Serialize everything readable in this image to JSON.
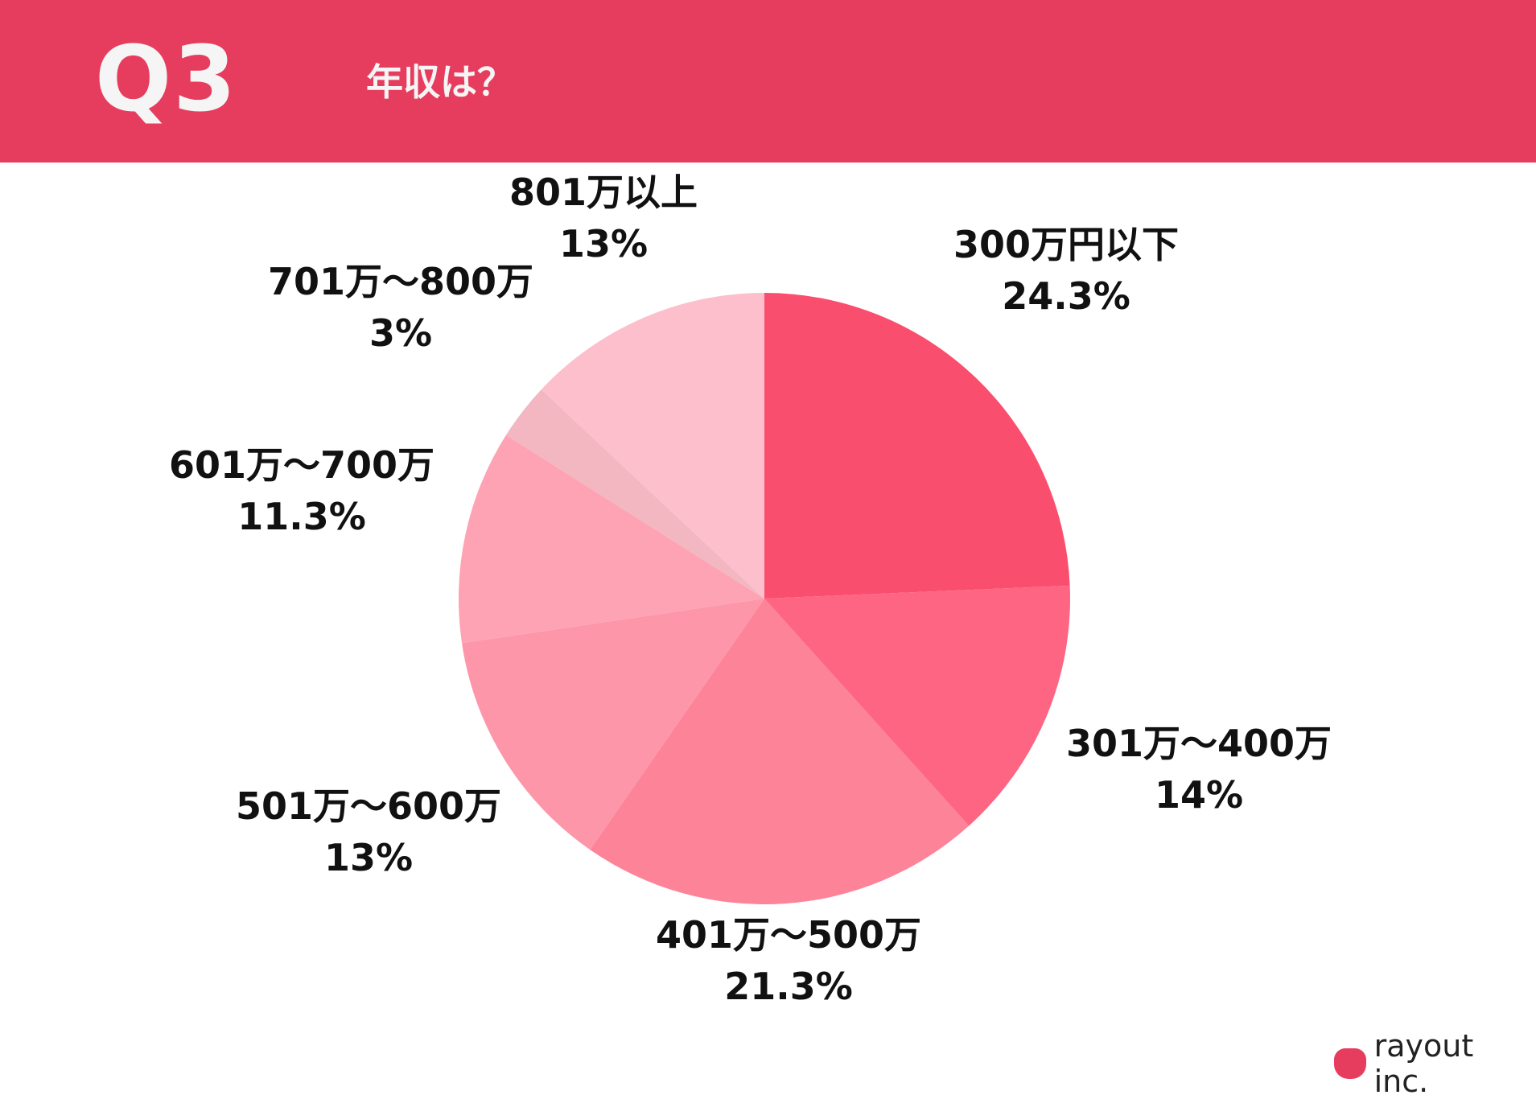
{
  "header": {
    "question_number": "Q3",
    "question_text": "年収は？"
  },
  "chart_data": {
    "type": "pie",
    "title": "",
    "start_angle_deg": 0,
    "direction": "clockwise",
    "slices": [
      {
        "label": "300万円以下",
        "value": 24.3,
        "value_label": "24.3%",
        "color": "#fa4e6e"
      },
      {
        "label": "301万〜400万",
        "value": 14,
        "value_label": "14%",
        "color": "#fe6582"
      },
      {
        "label": "401万〜500万",
        "value": 21.3,
        "value_label": "21.3%",
        "color": "#fd8399"
      },
      {
        "label": "501万〜600万",
        "value": 13,
        "value_label": "13%",
        "color": "#fd96a9"
      },
      {
        "label": "601万〜700万",
        "value": 11.3,
        "value_label": "11.3%",
        "color": "#fea3b3"
      },
      {
        "label": "701万〜800万",
        "value": 3,
        "value_label": "3%",
        "color": "#f3b7c2"
      },
      {
        "label": "801万以上",
        "value": 13,
        "value_label": "13%",
        "color": "#fdbfcb"
      }
    ]
  },
  "brand": {
    "name": "rayout inc.",
    "color": "#e63d5f"
  }
}
